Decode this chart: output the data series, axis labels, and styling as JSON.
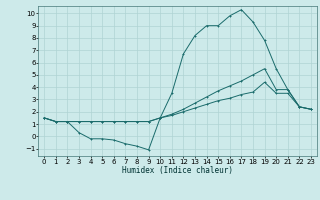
{
  "background_color": "#cdeaea",
  "grid_color": "#b0d4d4",
  "line_color": "#1a6b6b",
  "xlabel": "Humidex (Indice chaleur)",
  "xlim": [
    -0.5,
    23.5
  ],
  "ylim": [
    -1.6,
    10.6
  ],
  "xticks": [
    0,
    1,
    2,
    3,
    4,
    5,
    6,
    7,
    8,
    9,
    10,
    11,
    12,
    13,
    14,
    15,
    16,
    17,
    18,
    19,
    20,
    21,
    22,
    23
  ],
  "yticks": [
    -1,
    0,
    1,
    2,
    3,
    4,
    5,
    6,
    7,
    8,
    9,
    10
  ],
  "line_big_x": [
    0,
    1,
    2,
    3,
    4,
    5,
    6,
    7,
    8,
    9,
    10,
    11,
    12,
    13,
    14,
    15,
    16,
    17,
    18,
    19,
    20,
    21,
    22,
    23
  ],
  "line_big_y": [
    1.5,
    1.2,
    1.2,
    0.3,
    -0.2,
    -0.2,
    -0.3,
    -0.6,
    -0.8,
    -1.1,
    1.5,
    3.5,
    6.7,
    8.2,
    9.0,
    9.0,
    9.8,
    10.3,
    9.3,
    7.8,
    5.5,
    3.8,
    2.4,
    2.2
  ],
  "line_mid_x": [
    0,
    1,
    2,
    3,
    4,
    5,
    6,
    7,
    8,
    9,
    10,
    11,
    12,
    13,
    14,
    15,
    16,
    17,
    18,
    19,
    20,
    21,
    22,
    23
  ],
  "line_mid_y": [
    1.5,
    1.2,
    1.2,
    1.2,
    1.2,
    1.2,
    1.2,
    1.2,
    1.2,
    1.2,
    1.5,
    1.8,
    2.2,
    2.7,
    3.2,
    3.7,
    4.1,
    4.5,
    5.0,
    5.5,
    3.8,
    3.8,
    2.4,
    2.2
  ],
  "line_low_x": [
    0,
    1,
    2,
    3,
    4,
    5,
    6,
    7,
    8,
    9,
    10,
    11,
    12,
    13,
    14,
    15,
    16,
    17,
    18,
    19,
    20,
    21,
    22,
    23
  ],
  "line_low_y": [
    1.5,
    1.2,
    1.2,
    1.2,
    1.2,
    1.2,
    1.2,
    1.2,
    1.2,
    1.2,
    1.5,
    1.7,
    2.0,
    2.3,
    2.6,
    2.9,
    3.1,
    3.4,
    3.6,
    4.4,
    3.5,
    3.5,
    2.4,
    2.2
  ]
}
